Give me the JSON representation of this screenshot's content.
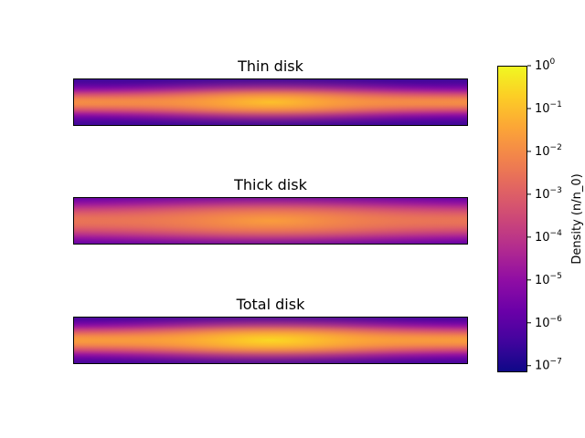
{
  "chart_data": {
    "type": "heatmap",
    "panels": [
      {
        "title": "Thin disk",
        "peak_density": 0.12,
        "radial_scale": 0.55,
        "vertical_scale": 0.22
      },
      {
        "title": "Thick disk",
        "peak_density": 0.025,
        "radial_scale": 0.7,
        "vertical_scale": 0.45
      },
      {
        "title": "Total disk",
        "peak_density": 0.3,
        "radial_scale": 0.6,
        "vertical_scale": 0.28
      }
    ],
    "colorbar": {
      "label": "Density (n/n_0)",
      "scale": "log",
      "colormap": "plasma",
      "range": [
        7e-08,
        1
      ],
      "ticks": [
        {
          "exp": 0,
          "base": "10",
          "sup": "0"
        },
        {
          "exp": -1,
          "base": "10",
          "sup": "−1"
        },
        {
          "exp": -2,
          "base": "10",
          "sup": "−2"
        },
        {
          "exp": -3,
          "base": "10",
          "sup": "−3"
        },
        {
          "exp": -4,
          "base": "10",
          "sup": "−4"
        },
        {
          "exp": -5,
          "base": "10",
          "sup": "−5"
        },
        {
          "exp": -6,
          "base": "10",
          "sup": "−6"
        },
        {
          "exp": -7,
          "base": "10",
          "sup": "−7"
        }
      ]
    },
    "grid": false
  }
}
